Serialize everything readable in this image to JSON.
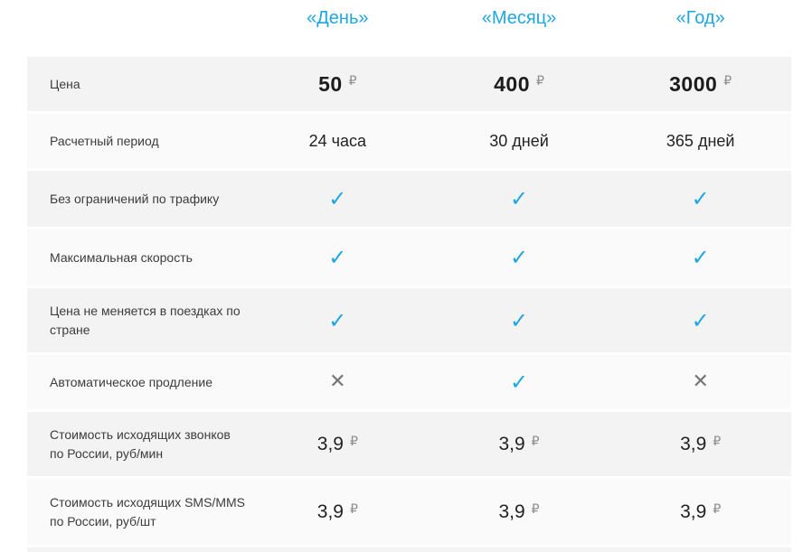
{
  "accent_color": "#1ea7e0",
  "cross_color": "#757575",
  "row_colors": {
    "dark": "#f3f3f3",
    "light": "#fafafa"
  },
  "plans": [
    "«День»",
    "«Месяц»",
    "«Год»"
  ],
  "icons": {
    "check": "✓",
    "cross": "✕"
  },
  "rows": [
    {
      "label": "Цена",
      "type": "price",
      "values": [
        {
          "amount": "50",
          "currency": "₽"
        },
        {
          "amount": "400",
          "currency": "₽"
        },
        {
          "amount": "3000",
          "currency": "₽"
        }
      ]
    },
    {
      "label": "Расчетный период",
      "type": "text",
      "values": [
        "24 часа",
        "30 дней",
        "365 дней"
      ]
    },
    {
      "label": "Без ограничений по трафику",
      "type": "icons",
      "values": [
        "check",
        "check",
        "check"
      ]
    },
    {
      "label": "Максимальная скорость",
      "type": "icons",
      "values": [
        "check",
        "check",
        "check"
      ]
    },
    {
      "label": "Цена не меняется в поездках по стране",
      "type": "icons",
      "values": [
        "check",
        "check",
        "check"
      ]
    },
    {
      "label": "Автоматическое продление",
      "type": "icons",
      "values": [
        "cross",
        "check",
        "cross"
      ]
    },
    {
      "label": "Стоимость исходящих звонков по России, руб/мин",
      "type": "price_regular",
      "values": [
        {
          "amount": "3,9",
          "currency": "₽"
        },
        {
          "amount": "3,9",
          "currency": "₽"
        },
        {
          "amount": "3,9",
          "currency": "₽"
        }
      ]
    },
    {
      "label": "Стоимость исходящих SMS/MMS по России, руб/шт",
      "type": "price_regular",
      "values": [
        {
          "amount": "3,9",
          "currency": "₽"
        },
        {
          "amount": "3,9",
          "currency": "₽"
        },
        {
          "amount": "3,9",
          "currency": "₽"
        }
      ]
    }
  ]
}
